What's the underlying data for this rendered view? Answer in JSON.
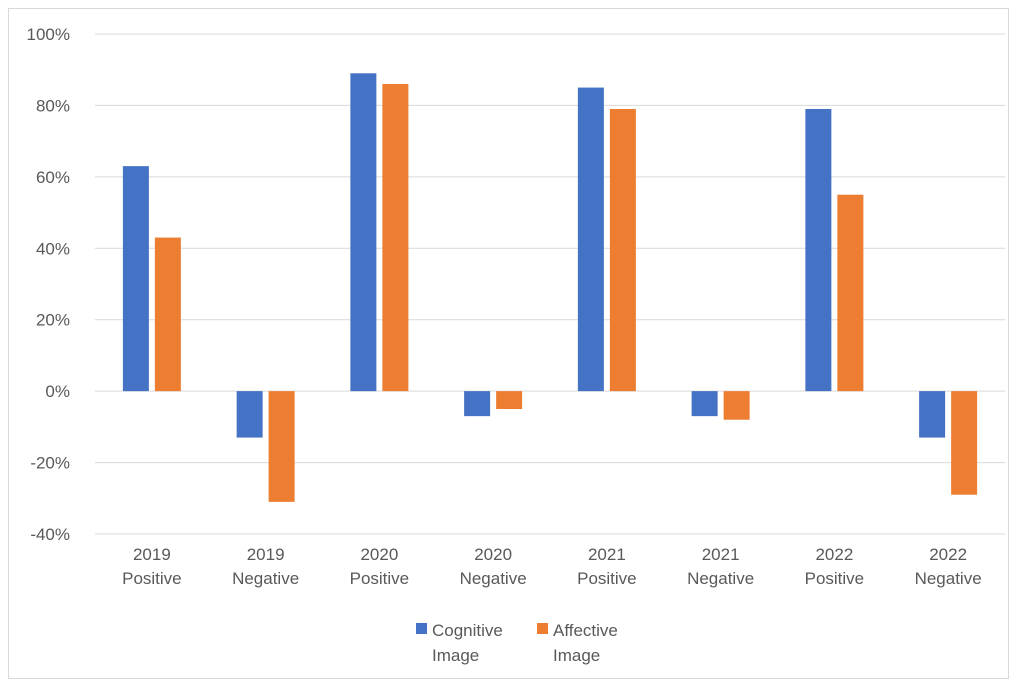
{
  "chart_data": {
    "type": "bar",
    "categories": [
      [
        "2019",
        "Positive"
      ],
      [
        "2019",
        "Negative"
      ],
      [
        "2020",
        "Positive"
      ],
      [
        "2020",
        "Negative"
      ],
      [
        "2021",
        "Positive"
      ],
      [
        "2021",
        "Negative"
      ],
      [
        "2022",
        "Positive"
      ],
      [
        "2022",
        "Negative"
      ]
    ],
    "series": [
      {
        "name": "Cognitive Image",
        "legend_lines": [
          "Cognitive",
          "Image"
        ],
        "color": "#4472c4",
        "values": [
          63,
          -13,
          89,
          -7,
          85,
          -7,
          79,
          -13
        ]
      },
      {
        "name": "Affective Image",
        "legend_lines": [
          "Affective",
          "Image"
        ],
        "color": "#ed7d31",
        "values": [
          43,
          -31,
          86,
          -5,
          79,
          -8,
          55,
          -29
        ]
      }
    ],
    "ylim": [
      -40,
      100
    ],
    "yticks": [
      -40,
      -20,
      0,
      20,
      40,
      60,
      80,
      100
    ],
    "ytick_labels": [
      "-40%",
      "-20%",
      "0%",
      "20%",
      "40%",
      "60%",
      "80%",
      "100%"
    ],
    "grid": true,
    "gridline_color": "#d9d9d9",
    "legend_position": "bottom"
  }
}
